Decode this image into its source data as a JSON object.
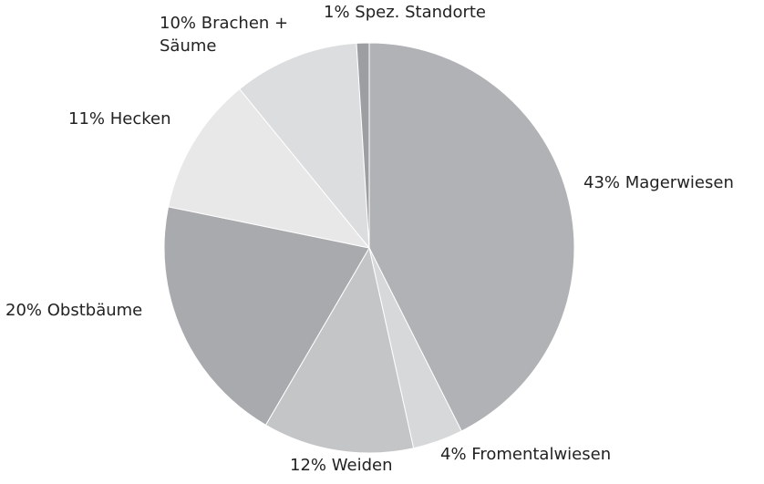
{
  "chart_data": {
    "type": "pie",
    "categories": [
      "Magerwiesen",
      "Fromentalwiesen",
      "Weiden",
      "Obstbäume",
      "Hecken",
      "Brachen + Säume",
      "Spez. Standorte"
    ],
    "values": [
      43,
      4,
      12,
      20,
      11,
      10,
      1
    ],
    "value_labels": [
      "43%",
      "4%",
      "12%",
      "20%",
      "11%",
      "10%",
      "1%"
    ],
    "colors": [
      "#b1b2b5",
      "#d7d8da",
      "#c4c5c7",
      "#a9aaad",
      "#e8e8e9",
      "#dcdddf",
      "#9d9ea1"
    ]
  }
}
